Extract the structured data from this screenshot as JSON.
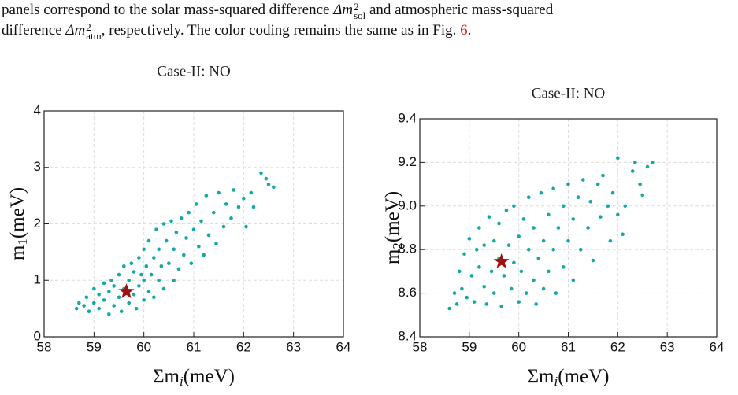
{
  "text": {
    "line1": [
      "panels correspond to the solar mass-squared difference ",
      "Δm",
      "2",
      "sol",
      " and atmospheric mass-squared"
    ],
    "line2": [
      "difference ",
      "Δm",
      "2",
      "atm",
      ", respectively. The color coding remains the same as in Fig. ",
      "6",
      "."
    ]
  },
  "chart_data": [
    {
      "type": "scatter",
      "title": "Case-II: NO",
      "xlabel": [
        "Σm",
        "i",
        "(meV)"
      ],
      "ylabel": [
        "m",
        "1",
        "(meV)"
      ],
      "xlim": [
        58,
        64
      ],
      "ylim": [
        0,
        4
      ],
      "xticks": [
        58,
        59,
        60,
        61,
        62,
        63,
        64
      ],
      "yticks": [
        0,
        1,
        2,
        3,
        4
      ],
      "grid": true,
      "series": [
        {
          "color": "#14a9a9",
          "x": [
            58.65,
            58.7,
            58.8,
            58.85,
            58.9,
            59.0,
            59.0,
            59.1,
            59.1,
            59.2,
            59.2,
            59.3,
            59.3,
            59.35,
            59.4,
            59.4,
            59.5,
            59.5,
            59.55,
            59.6,
            59.6,
            59.7,
            59.7,
            59.75,
            59.8,
            59.8,
            59.85,
            59.9,
            59.9,
            59.95,
            60.0,
            60.0,
            60.0,
            60.05,
            60.1,
            60.1,
            60.15,
            60.2,
            60.2,
            60.25,
            60.3,
            60.3,
            60.35,
            60.4,
            60.4,
            60.45,
            60.5,
            60.55,
            60.6,
            60.6,
            60.65,
            60.7,
            60.75,
            60.8,
            60.85,
            60.9,
            60.95,
            61.0,
            61.05,
            61.1,
            61.15,
            61.2,
            61.25,
            61.3,
            61.4,
            61.45,
            61.5,
            61.6,
            61.65,
            61.75,
            61.8,
            61.9,
            62.0,
            62.05,
            62.15,
            62.2,
            62.35,
            62.45,
            62.5,
            62.6
          ],
          "y": [
            0.5,
            0.6,
            0.55,
            0.7,
            0.45,
            0.6,
            0.85,
            0.5,
            0.75,
            0.65,
            0.95,
            0.4,
            0.8,
            1.0,
            0.55,
            0.9,
            0.7,
            1.1,
            0.45,
            0.85,
            1.25,
            0.6,
            1.0,
            1.3,
            0.75,
            1.15,
            0.5,
            0.9,
            1.4,
            1.1,
            0.65,
            1.0,
            1.55,
            1.25,
            0.8,
            1.7,
            1.1,
            1.4,
            0.7,
            1.9,
            1.0,
            1.55,
            1.25,
            2.0,
            0.85,
            1.7,
            1.3,
            2.05,
            1.0,
            1.55,
            1.85,
            1.2,
            2.1,
            1.45,
            1.75,
            2.2,
            1.3,
            1.9,
            2.35,
            1.6,
            2.05,
            1.45,
            2.5,
            1.8,
            2.2,
            1.65,
            2.55,
            1.95,
            2.35,
            2.1,
            2.6,
            2.3,
            2.45,
            1.95,
            2.55,
            2.3,
            2.9,
            2.8,
            2.7,
            2.65
          ]
        }
      ],
      "highlight": {
        "x": 59.65,
        "y": 0.8,
        "color": "#a3100f"
      }
    },
    {
      "type": "scatter",
      "title": "Case-II: NO",
      "xlabel": [
        "Σm",
        "i",
        "(meV)"
      ],
      "ylabel": [
        "m",
        "2",
        "(meV)"
      ],
      "xlim": [
        58,
        64
      ],
      "ylim": [
        8.4,
        9.4
      ],
      "xticks": [
        58,
        59,
        60,
        61,
        62,
        63,
        64
      ],
      "yticks": [
        8.4,
        8.6,
        8.8,
        {
          "value": 9,
          "label": "9.0"
        },
        9.2,
        9.4
      ],
      "grid": true,
      "series": [
        {
          "color": "#14a9a9",
          "x": [
            58.6,
            58.7,
            58.75,
            58.8,
            58.85,
            58.9,
            58.95,
            59.0,
            59.05,
            59.1,
            59.15,
            59.2,
            59.2,
            59.3,
            59.3,
            59.35,
            59.4,
            59.45,
            59.5,
            59.5,
            59.6,
            59.6,
            59.65,
            59.7,
            59.75,
            59.8,
            59.85,
            59.9,
            59.9,
            60.0,
            60.0,
            60.05,
            60.1,
            60.15,
            60.2,
            60.2,
            60.3,
            60.3,
            60.35,
            60.4,
            60.45,
            60.5,
            60.5,
            60.6,
            60.6,
            60.7,
            60.7,
            60.75,
            60.8,
            60.9,
            60.9,
            61.0,
            61.0,
            61.1,
            61.1,
            61.2,
            61.25,
            61.3,
            61.4,
            61.45,
            61.5,
            61.6,
            61.65,
            61.7,
            61.8,
            61.85,
            61.9,
            62.0,
            62.0,
            62.1,
            62.15,
            62.3,
            62.35,
            62.45,
            62.5,
            62.6,
            62.7
          ],
          "y": [
            8.53,
            8.6,
            8.55,
            8.7,
            8.62,
            8.78,
            8.58,
            8.85,
            8.68,
            8.56,
            8.8,
            8.72,
            8.9,
            8.63,
            8.82,
            8.55,
            8.95,
            8.7,
            8.84,
            8.6,
            8.76,
            8.92,
            8.54,
            8.68,
            8.98,
            8.82,
            8.62,
            8.74,
            9.0,
            8.56,
            8.86,
            8.7,
            8.94,
            8.6,
            8.8,
            9.04,
            8.66,
            8.9,
            8.55,
            8.76,
            9.06,
            8.84,
            8.62,
            8.96,
            8.7,
            9.08,
            8.8,
            8.6,
            8.9,
            9.0,
            8.72,
            8.84,
            9.1,
            8.94,
            8.66,
            9.04,
            8.8,
            9.12,
            8.9,
            9.02,
            8.75,
            9.1,
            8.95,
            9.14,
            9.0,
            8.84,
            9.06,
            9.22,
            8.96,
            8.87,
            9.0,
            9.16,
            9.2,
            9.1,
            9.05,
            9.18,
            9.2
          ]
        }
      ],
      "highlight": {
        "x": 59.65,
        "y": 8.745,
        "color": "#a3100f"
      }
    }
  ]
}
